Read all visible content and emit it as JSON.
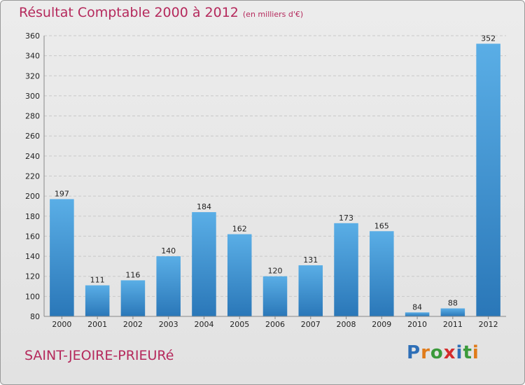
{
  "header": {
    "title": "Résultat Comptable 2000 à 2012",
    "subtitle": "(en milliers d'€)"
  },
  "footer": {
    "commune": "SAINT-JEOIRE-PRIEURé",
    "logo_letters": [
      "P",
      "r",
      "o",
      "x",
      "i",
      "t",
      "i"
    ],
    "logo_colors": [
      "#2e6fb7",
      "#e07b1a",
      "#3b9a3b",
      "#d42c2c",
      "#2e6fb7",
      "#3b9a3b",
      "#e07b1a"
    ]
  },
  "colors": {
    "bar_top": "#5aaee6",
    "bar_bottom": "#2a77b8",
    "title": "#b5295c"
  },
  "chart_data": {
    "type": "bar",
    "categories": [
      "2000",
      "2001",
      "2002",
      "2003",
      "2004",
      "2005",
      "2006",
      "2007",
      "2008",
      "2009",
      "2010",
      "2011",
      "2012"
    ],
    "values": [
      197,
      111,
      116,
      140,
      184,
      162,
      120,
      131,
      173,
      165,
      84,
      88,
      352
    ],
    "ylim": [
      80,
      360
    ],
    "yticks": [
      80,
      100,
      120,
      140,
      160,
      180,
      200,
      220,
      240,
      260,
      280,
      300,
      320,
      340,
      360
    ],
    "grid": true
  }
}
